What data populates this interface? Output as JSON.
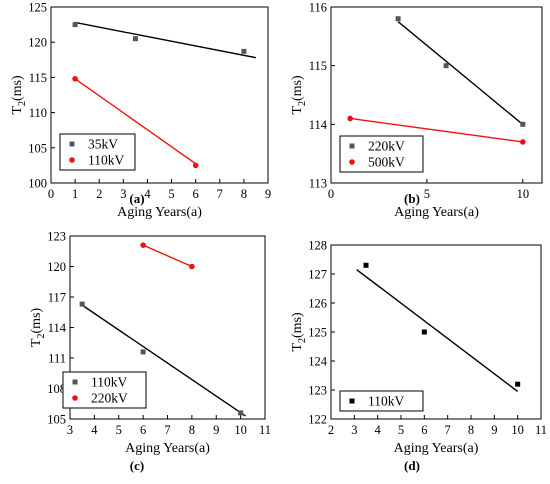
{
  "chart_data": [
    {
      "id": "a",
      "type": "scatter",
      "panel_label": "(a)",
      "xlabel": "Aging Years(a)",
      "ylabel": "T2(ms)",
      "xlim": [
        0,
        9
      ],
      "ylim": [
        100,
        125
      ],
      "xticks": [
        0,
        1,
        2,
        3,
        4,
        5,
        6,
        7,
        8,
        9
      ],
      "yticks": [
        100,
        105,
        110,
        115,
        120,
        125
      ],
      "legend_position": "bottom-left",
      "series": [
        {
          "name": "35kV",
          "color": "#555555",
          "marker": "square",
          "points": [
            [
              1,
              122.5
            ],
            [
              3.5,
              120.5
            ],
            [
              8,
              118.7
            ]
          ],
          "fit": [
            [
              1,
              122.8
            ],
            [
              8.5,
              117.8
            ]
          ]
        },
        {
          "name": "110kV",
          "color": "#ee1111",
          "marker": "circle",
          "points": [
            [
              1,
              114.8
            ],
            [
              6,
              102.5
            ]
          ],
          "fit": [
            [
              1,
              114.8
            ],
            [
              6.1,
              102.5
            ]
          ]
        }
      ]
    },
    {
      "id": "b",
      "type": "scatter",
      "panel_label": "(b)",
      "xlabel": "Aging Years(a)",
      "ylabel": "T2(ms)",
      "xlim": [
        0,
        11
      ],
      "ylim": [
        113,
        116
      ],
      "xticks": [
        0,
        5,
        10
      ],
      "yticks": [
        113,
        114,
        115,
        116
      ],
      "legend_position": "bottom-left",
      "series": [
        {
          "name": "220kV",
          "color": "#555555",
          "marker": "square",
          "points": [
            [
              3.5,
              115.8
            ],
            [
              6,
              115.0
            ],
            [
              10,
              114.0
            ]
          ],
          "fit": [
            [
              3.5,
              115.75
            ],
            [
              10.1,
              113.97
            ]
          ]
        },
        {
          "name": "500kV",
          "color": "#ee1111",
          "marker": "circle",
          "points": [
            [
              1,
              114.1
            ],
            [
              10,
              113.7
            ]
          ],
          "fit": [
            [
              1,
              114.1
            ],
            [
              10,
              113.7
            ]
          ]
        }
      ]
    },
    {
      "id": "c",
      "type": "scatter",
      "panel_label": "(c)",
      "xlabel": "Aging Years(a)",
      "ylabel": "T2(ms)",
      "xlim": [
        3,
        11
      ],
      "ylim": [
        105,
        123
      ],
      "xticks": [
        3,
        4,
        5,
        6,
        7,
        8,
        9,
        10,
        11
      ],
      "yticks": [
        105,
        108,
        111,
        114,
        117,
        120,
        123
      ],
      "legend_position": "bottom-left",
      "series": [
        {
          "name": "110kV",
          "color": "#555555",
          "marker": "square",
          "points": [
            [
              3.5,
              116.3
            ],
            [
              6,
              111.6
            ],
            [
              10,
              105.6
            ]
          ],
          "fit": [
            [
              3.5,
              116.2
            ],
            [
              10.2,
              105.3
            ]
          ]
        },
        {
          "name": "220kV",
          "color": "#ee1111",
          "marker": "circle",
          "points": [
            [
              6,
              122.1
            ],
            [
              8,
              120.0
            ]
          ],
          "fit": [
            [
              6,
              122.1
            ],
            [
              8,
              120.0
            ]
          ]
        }
      ]
    },
    {
      "id": "d",
      "type": "scatter",
      "panel_label": "(d)",
      "xlabel": "Aging Years(a)",
      "ylabel": "T2(ms)",
      "xlim": [
        2,
        11
      ],
      "ylim": [
        122,
        128
      ],
      "xticks": [
        2,
        3,
        4,
        5,
        6,
        7,
        8,
        9,
        10,
        11
      ],
      "yticks": [
        122,
        123,
        124,
        125,
        126,
        127,
        128
      ],
      "legend_position": "bottom-left",
      "series": [
        {
          "name": "110kV",
          "color": "#000000",
          "marker": "square",
          "points": [
            [
              3.5,
              127.3
            ],
            [
              6,
              125.0
            ],
            [
              10,
              123.2
            ]
          ],
          "fit": [
            [
              3.1,
              127.15
            ],
            [
              10,
              122.95
            ]
          ]
        }
      ]
    }
  ]
}
